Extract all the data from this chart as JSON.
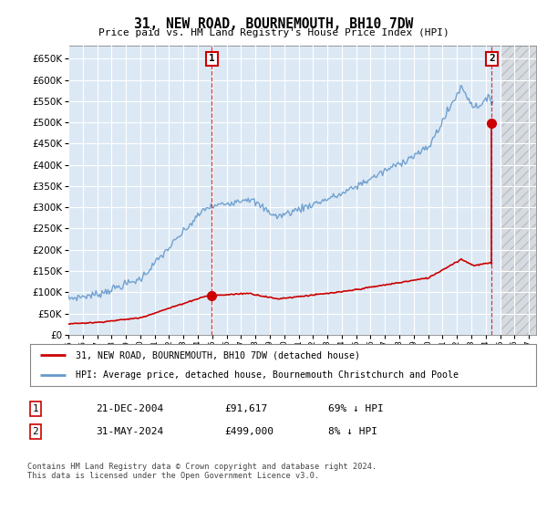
{
  "title": "31, NEW ROAD, BOURNEMOUTH, BH10 7DW",
  "subtitle": "Price paid vs. HM Land Registry's House Price Index (HPI)",
  "ylim": [
    0,
    680000
  ],
  "yticks": [
    0,
    50000,
    100000,
    150000,
    200000,
    250000,
    300000,
    350000,
    400000,
    450000,
    500000,
    550000,
    600000,
    650000
  ],
  "xlim_start": 1995.0,
  "xlim_end": 2027.5,
  "hatch_start": 2025.0,
  "bg_color": "#dce9f5",
  "grid_color": "#ffffff",
  "transaction1_date": 2004.97,
  "transaction1_price": 91617,
  "transaction2_date": 2024.42,
  "transaction2_price": 499000,
  "legend_label1": "31, NEW ROAD, BOURNEMOUTH, BH10 7DW (detached house)",
  "legend_label2": "HPI: Average price, detached house, Bournemouth Christchurch and Poole",
  "ann1_label": "1",
  "ann2_label": "2",
  "note1_num": "1",
  "note1_date": "21-DEC-2004",
  "note1_price": "£91,617",
  "note1_hpi": "69% ↓ HPI",
  "note2_num": "2",
  "note2_date": "31-MAY-2024",
  "note2_price": "£499,000",
  "note2_hpi": "8% ↓ HPI",
  "footer": "Contains HM Land Registry data © Crown copyright and database right 2024.\nThis data is licensed under the Open Government Licence v3.0.",
  "line_red_color": "#cc0000",
  "line_blue_color": "#6699cc",
  "transaction_dot_color": "#cc0000"
}
